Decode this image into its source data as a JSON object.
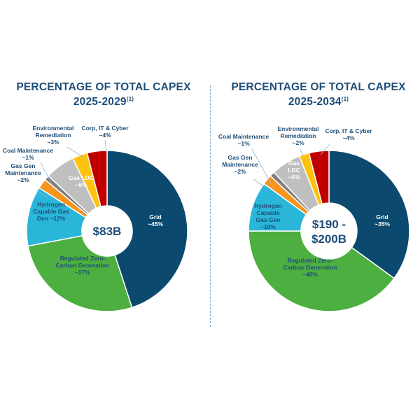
{
  "colors": {
    "title": "#1f4e79"
  },
  "chart_data": [
    {
      "type": "pie",
      "title": "PERCENTAGE OF TOTAL CAPEX",
      "period": "2025-2029",
      "footnote": "(1)",
      "center_label": [
        "$83B"
      ],
      "slices": [
        {
          "name": "Grid",
          "value": 45,
          "color": "#0b4a6e",
          "label": [
            "Grid",
            "~45%"
          ]
        },
        {
          "name": "Regulated Zero-Carbon Generation",
          "value": 27,
          "color": "#4caf3f",
          "label": [
            "Regulated Zero-",
            "Carbon Generation",
            "~27%"
          ]
        },
        {
          "name": "Hydrogen Capable Gas Gen",
          "value": 12,
          "color": "#29b6d9",
          "label": [
            "Hydrogen",
            "Capable Gas",
            "Gen ~12%"
          ]
        },
        {
          "name": "Gas Gen Maintenance",
          "value": 2,
          "color": "#f7941d",
          "label": [
            "Gas Gen",
            "Maintenance",
            "~2%"
          ]
        },
        {
          "name": "Coal Maintenance",
          "value": 1,
          "color": "#7f7f7f",
          "label": [
            "Coal Maintenance",
            "~1%"
          ]
        },
        {
          "name": "Gas LDC",
          "value": 6,
          "color": "#bfbfbf",
          "label": [
            "Gas LDC",
            "~6%"
          ]
        },
        {
          "name": "Environmental Remediation",
          "value": 3,
          "color": "#ffc20e",
          "label": [
            "Environmental",
            "Remediation",
            "~3%"
          ]
        },
        {
          "name": "Corp, IT & Cyber",
          "value": 4,
          "color": "#c00000",
          "label": [
            "Corp, IT & Cyber",
            "~4%"
          ]
        }
      ]
    },
    {
      "type": "pie",
      "title": "PERCENTAGE OF TOTAL CAPEX",
      "period": "2025-2034",
      "footnote": "(1)",
      "center_label": [
        "$190 -",
        "$200B"
      ],
      "slices": [
        {
          "name": "Grid",
          "value": 35,
          "color": "#0b4a6e",
          "label": [
            "Grid",
            "~35%"
          ]
        },
        {
          "name": "Regulated Zero-Carbon Generation",
          "value": 40,
          "color": "#4caf3f",
          "label": [
            "Regulated Zero-",
            "Carbon Generation",
            "~40%"
          ]
        },
        {
          "name": "Hydrogen Capable Gas Gen",
          "value": 10,
          "color": "#29b6d9",
          "label": [
            "Hydrogen",
            "Capable",
            "Gas Gen",
            "~10%"
          ]
        },
        {
          "name": "Gas Gen Maintenance",
          "value": 2,
          "color": "#f7941d",
          "label": [
            "Gas Gen",
            "Maintenance",
            "~2%"
          ]
        },
        {
          "name": "Coal Maintenance",
          "value": 1,
          "color": "#7f7f7f",
          "label": [
            "Coal Maintenance",
            "~1%"
          ]
        },
        {
          "name": "Gas LDC",
          "value": 6,
          "color": "#bfbfbf",
          "label": [
            "Gas",
            "LDC",
            "~6%"
          ]
        },
        {
          "name": "Environmental Remediation",
          "value": 2,
          "color": "#ffc20e",
          "label": [
            "Environmental",
            "Remediation",
            "~2%"
          ]
        },
        {
          "name": "Corp, IT & Cyber",
          "value": 4,
          "color": "#c00000",
          "label": [
            "Corp, IT & Cyber",
            "~4%"
          ]
        }
      ]
    }
  ]
}
